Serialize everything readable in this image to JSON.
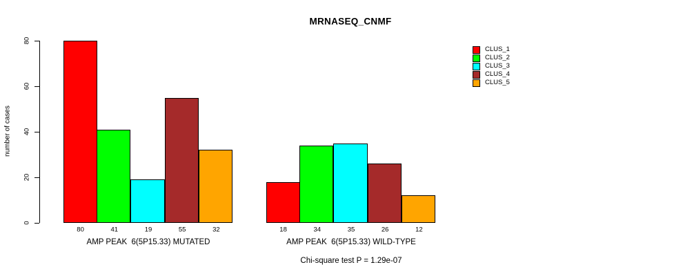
{
  "title": "MRNASEQ_CNMF",
  "y_axis": {
    "label": "number of cases",
    "ticks": [
      0,
      20,
      40,
      60,
      80
    ]
  },
  "footnote": "Chi-square test P = 1.29e-07",
  "chart_data": {
    "type": "bar",
    "title": "MRNASEQ_CNMF",
    "xlabel": "",
    "ylabel": "number of cases",
    "ylim": [
      0,
      80
    ],
    "yticks": [
      0,
      20,
      40,
      60,
      80
    ],
    "grid": false,
    "legend_position": "right",
    "bar_value_labels": true,
    "categories": [
      "AMP PEAK  6(5P15.33) MUTATED",
      "AMP PEAK  6(5P15.33) WILD-TYPE"
    ],
    "series": [
      {
        "name": "CLUS_1",
        "color": "#ff0000",
        "values": [
          80,
          18
        ]
      },
      {
        "name": "CLUS_2",
        "color": "#00ff00",
        "values": [
          41,
          34
        ]
      },
      {
        "name": "CLUS_3",
        "color": "#00ffff",
        "values": [
          19,
          35
        ]
      },
      {
        "name": "CLUS_4",
        "color": "#a52a2a",
        "values": [
          55,
          26
        ]
      },
      {
        "name": "CLUS_5",
        "color": "#ffa500",
        "values": [
          32,
          12
        ]
      }
    ],
    "annotation": "Chi-square test P = 1.29e-07"
  }
}
